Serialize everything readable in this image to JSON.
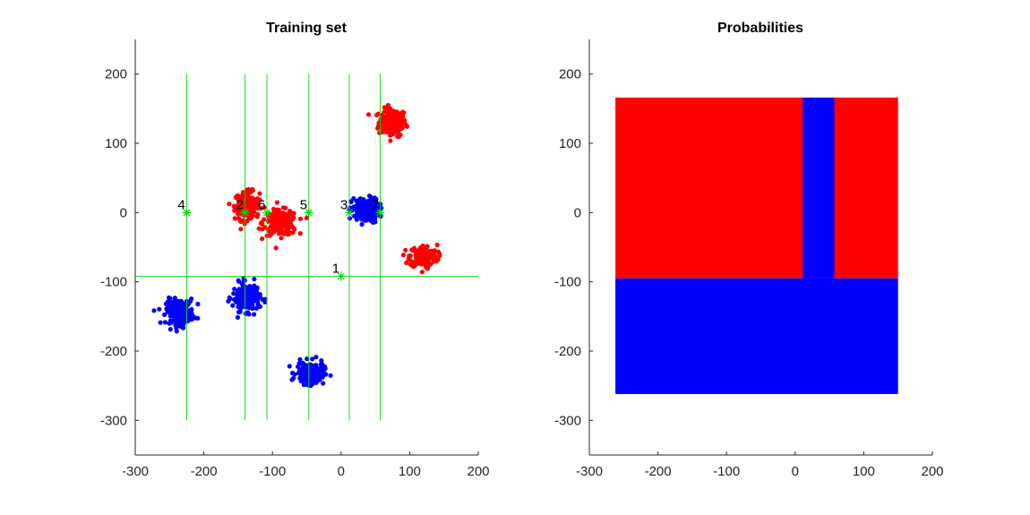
{
  "chart_data": [
    {
      "type": "scatter",
      "title": "Training set",
      "xlim": [
        -300,
        200
      ],
      "ylim": [
        -350,
        250
      ],
      "xticks": [
        -300,
        -200,
        -100,
        0,
        100,
        200
      ],
      "yticks": [
        -300,
        -200,
        -100,
        0,
        100,
        200
      ],
      "xtick_labels": [
        "-300",
        "-200",
        "-100",
        "0",
        "100",
        "200"
      ],
      "ytick_labels": [
        "-300",
        "-200",
        "-100",
        "0",
        "100",
        "200"
      ],
      "grid": false,
      "clusters": [
        {
          "color": "#ff0000",
          "center": [
            75,
            130
          ],
          "spread": [
            10,
            10
          ],
          "count": 180
        },
        {
          "color": "#ff0000",
          "center": [
            -137,
            10
          ],
          "spread": [
            9,
            10
          ],
          "count": 180
        },
        {
          "color": "#ff0000",
          "center": [
            -88,
            -15
          ],
          "spread": [
            12,
            9
          ],
          "count": 200
        },
        {
          "color": "#ff0000",
          "center": [
            120,
            -63
          ],
          "spread": [
            10,
            8
          ],
          "count": 180
        },
        {
          "color": "#0000ff",
          "center": [
            35,
            3
          ],
          "spread": [
            10,
            9
          ],
          "count": 180
        },
        {
          "color": "#0000ff",
          "center": [
            -235,
            -143
          ],
          "spread": [
            10,
            9
          ],
          "count": 180
        },
        {
          "color": "#0000ff",
          "center": [
            -138,
            -122
          ],
          "spread": [
            10,
            10
          ],
          "count": 180
        },
        {
          "color": "#0000ff",
          "center": [
            -45,
            -232
          ],
          "spread": [
            10,
            8
          ],
          "count": 180
        }
      ],
      "split_lines": {
        "color": "#00dd00",
        "vertical": [
          {
            "x": -225,
            "y_range": [
              -300,
              200
            ]
          },
          {
            "x": -140,
            "y_range": [
              -300,
              200
            ]
          },
          {
            "x": -108,
            "y_range": [
              -300,
              200
            ]
          },
          {
            "x": -47,
            "y_range": [
              -300,
              200
            ]
          },
          {
            "x": 12,
            "y_range": [
              -300,
              200
            ]
          },
          {
            "x": 57,
            "y_range": [
              -300,
              200
            ]
          }
        ],
        "horizontal": [
          {
            "y": -92,
            "x_range": [
              -300,
              200
            ]
          }
        ]
      },
      "split_points": [
        {
          "label": "1",
          "x": 0,
          "y": -92
        },
        {
          "label": "2",
          "x": -140,
          "y": 0
        },
        {
          "label": "3",
          "x": 12,
          "y": 0
        },
        {
          "label": "4",
          "x": -225,
          "y": 0
        },
        {
          "label": "5",
          "x": -47,
          "y": 0
        },
        {
          "label": "6",
          "x": -108,
          "y": 0
        },
        {
          "label": "7",
          "x": 57,
          "y": 0
        }
      ]
    },
    {
      "type": "heatmap",
      "title": "Probabilities",
      "xlim": [
        -300,
        200
      ],
      "ylim": [
        -350,
        250
      ],
      "xticks": [
        -300,
        -200,
        -100,
        0,
        100,
        200
      ],
      "yticks": [
        -300,
        -200,
        -100,
        0,
        100,
        200
      ],
      "xtick_labels": [
        "-300",
        "-200",
        "-100",
        "0",
        "100",
        "200"
      ],
      "ytick_labels": [
        "-300",
        "-200",
        "-100",
        "0",
        "100",
        "200"
      ],
      "regions": [
        {
          "color": "#ff0000",
          "x": [
            -262,
            150
          ],
          "y": [
            -95,
            166
          ]
        },
        {
          "color": "#0000ff",
          "x": [
            -262,
            150
          ],
          "y": [
            -262,
            -95
          ]
        },
        {
          "color": "#0000ff",
          "x": [
            11,
            57
          ],
          "y": [
            -95,
            166
          ]
        }
      ]
    }
  ]
}
